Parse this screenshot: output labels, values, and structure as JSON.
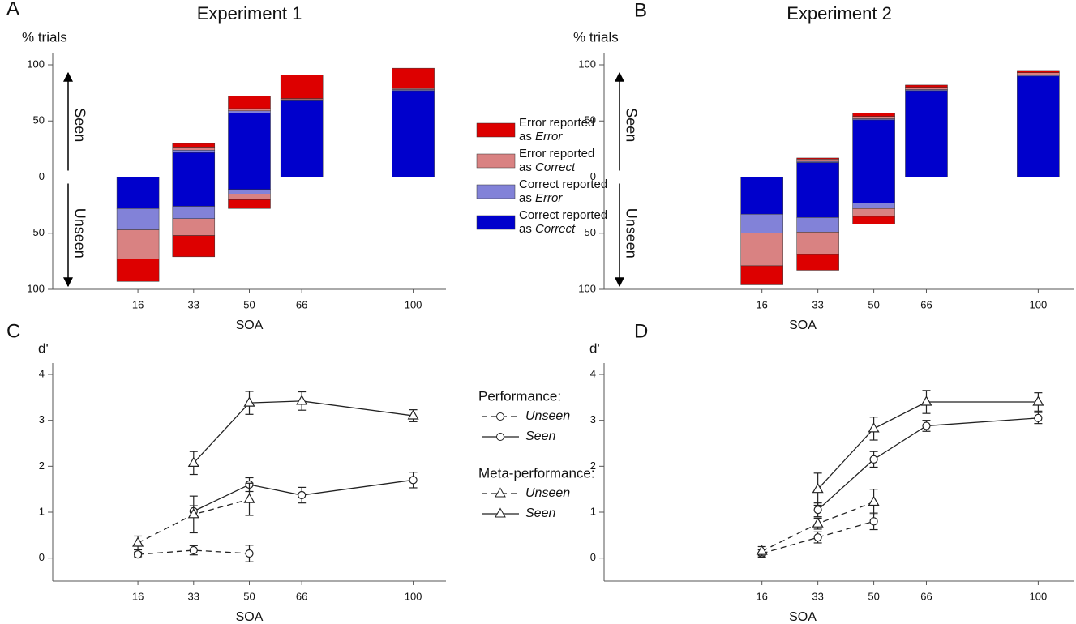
{
  "chart_data": [
    {
      "type": "bar",
      "panel": "A",
      "title": "Experiment 1",
      "y_label": "% trials",
      "x_label": "SOA",
      "annotations": [
        "Seen",
        "Unseen"
      ],
      "x": [
        16,
        33,
        50,
        66,
        100
      ],
      "xlim": [
        -10,
        110
      ],
      "xticks": [
        16,
        33,
        50,
        66,
        100
      ],
      "ylim": [
        -100,
        100
      ],
      "yticks": [
        {
          "value": -100,
          "label": "100"
        },
        {
          "value": -50,
          "label": "50"
        },
        0,
        50,
        100
      ],
      "legend": "right",
      "series": [
        {
          "name": "Error reported as Error",
          "color": "#dd0000",
          "values": [
            0,
            4,
            11,
            21,
            18
          ],
          "values_unseen": [
            -20,
            -19,
            -8,
            0,
            0
          ]
        },
        {
          "name": "Error reported as Correct",
          "color": "#d98282",
          "values": [
            0,
            2,
            2,
            1,
            1
          ],
          "values_unseen": [
            -26,
            -15,
            -5,
            0,
            0
          ]
        },
        {
          "name": "Correct reported as Error",
          "color": "#8282d8",
          "values": [
            0,
            2,
            2,
            1,
            1
          ],
          "values_unseen": [
            -19,
            -11,
            -4,
            0,
            0
          ]
        },
        {
          "name": "Correct reported as Correct",
          "color": "#0000cc",
          "values": [
            0,
            22,
            57,
            68,
            77
          ],
          "values_unseen": [
            -28,
            -26,
            -11,
            0,
            0
          ]
        }
      ]
    },
    {
      "type": "bar",
      "panel": "B",
      "title": "Experiment 2",
      "y_label": "% trials",
      "x_label": "SOA",
      "annotations": [
        "Seen",
        "Unseen"
      ],
      "x": [
        16,
        33,
        50,
        66,
        100
      ],
      "xlim": [
        -32,
        111
      ],
      "xticks": [
        16,
        33,
        50,
        66,
        100
      ],
      "ylim": [
        -100,
        100
      ],
      "yticks": [
        {
          "value": -100,
          "label": "100"
        },
        {
          "value": -50,
          "label": "50"
        },
        0,
        50,
        100
      ],
      "series": [
        {
          "color": "#dd0000",
          "values": [
            0,
            1,
            3,
            2,
            2
          ],
          "values_unseen": [
            -17,
            -14,
            -7,
            0,
            0
          ]
        },
        {
          "color": "#d98282",
          "values": [
            0,
            2,
            2,
            2,
            2
          ],
          "values_unseen": [
            -29,
            -20,
            -7,
            0,
            0
          ]
        },
        {
          "color": "#8282d8",
          "values": [
            0,
            1,
            1,
            1,
            1
          ],
          "values_unseen": [
            -17,
            -13,
            -5,
            0,
            0
          ]
        },
        {
          "color": "#0000cc",
          "values": [
            0,
            13,
            51,
            77,
            90
          ],
          "values_unseen": [
            -33,
            -36,
            -23,
            0,
            0
          ]
        }
      ]
    },
    {
      "type": "line",
      "panel": "C",
      "y_label": "d'",
      "x_label": "SOA",
      "x": [
        16,
        33,
        50,
        66,
        100
      ],
      "xlim": [
        -10,
        110
      ],
      "xticks": [
        16,
        33,
        50,
        66,
        100
      ],
      "ylim": [
        -0.5,
        4
      ],
      "yticks": [
        0,
        1,
        2,
        3,
        4
      ],
      "legend": "right",
      "legend_titles": [
        "Performance:",
        "Meta-performance:"
      ],
      "series": [
        {
          "name": "Unseen",
          "marker": "circle",
          "dash": true,
          "color": "#222222",
          "values": [
            0.08,
            0.17,
            0.1,
            null,
            null
          ],
          "errors": [
            0.05,
            0.1,
            0.18,
            null,
            null
          ]
        },
        {
          "name": "Seen",
          "marker": "circle",
          "dash": false,
          "color": "#222222",
          "values": [
            null,
            1.02,
            1.6,
            1.37,
            1.7
          ],
          "errors": [
            null,
            0.12,
            0.15,
            0.17,
            0.17
          ]
        },
        {
          "name": "Unseen",
          "marker": "triangle",
          "dash": true,
          "color": "#222222",
          "values": [
            0.33,
            0.95,
            1.28,
            null,
            null
          ],
          "errors": [
            0.15,
            0.4,
            0.35,
            null,
            null
          ]
        },
        {
          "name": "Seen",
          "marker": "triangle",
          "dash": false,
          "color": "#222222",
          "values": [
            null,
            2.07,
            3.38,
            3.42,
            3.1
          ],
          "errors": [
            null,
            0.25,
            0.25,
            0.2,
            0.13
          ]
        }
      ]
    },
    {
      "type": "line",
      "panel": "D",
      "y_label": "d'",
      "x_label": "SOA",
      "x": [
        16,
        33,
        50,
        66,
        100
      ],
      "xlim": [
        -32,
        111
      ],
      "xticks": [
        16,
        33,
        50,
        66,
        100
      ],
      "ylim": [
        -0.5,
        4
      ],
      "yticks": [
        0,
        1,
        2,
        3,
        4
      ],
      "series": [
        {
          "marker": "circle",
          "dash": true,
          "color": "#222222",
          "values": [
            0.1,
            0.45,
            0.8,
            null,
            null
          ],
          "errors": [
            0.08,
            0.12,
            0.18,
            null,
            null
          ]
        },
        {
          "marker": "circle",
          "dash": false,
          "color": "#222222",
          "values": [
            null,
            1.05,
            2.15,
            2.88,
            3.05
          ],
          "errors": [
            null,
            0.15,
            0.17,
            0.12,
            0.12
          ]
        },
        {
          "marker": "triangle",
          "dash": true,
          "color": "#222222",
          "values": [
            0.15,
            0.75,
            1.22,
            null,
            null
          ],
          "errors": [
            0.1,
            0.12,
            0.28,
            null,
            null
          ]
        },
        {
          "marker": "triangle",
          "dash": false,
          "color": "#222222",
          "values": [
            null,
            1.5,
            2.82,
            3.4,
            3.4
          ],
          "errors": [
            null,
            0.35,
            0.25,
            0.25,
            0.2
          ]
        }
      ]
    }
  ]
}
